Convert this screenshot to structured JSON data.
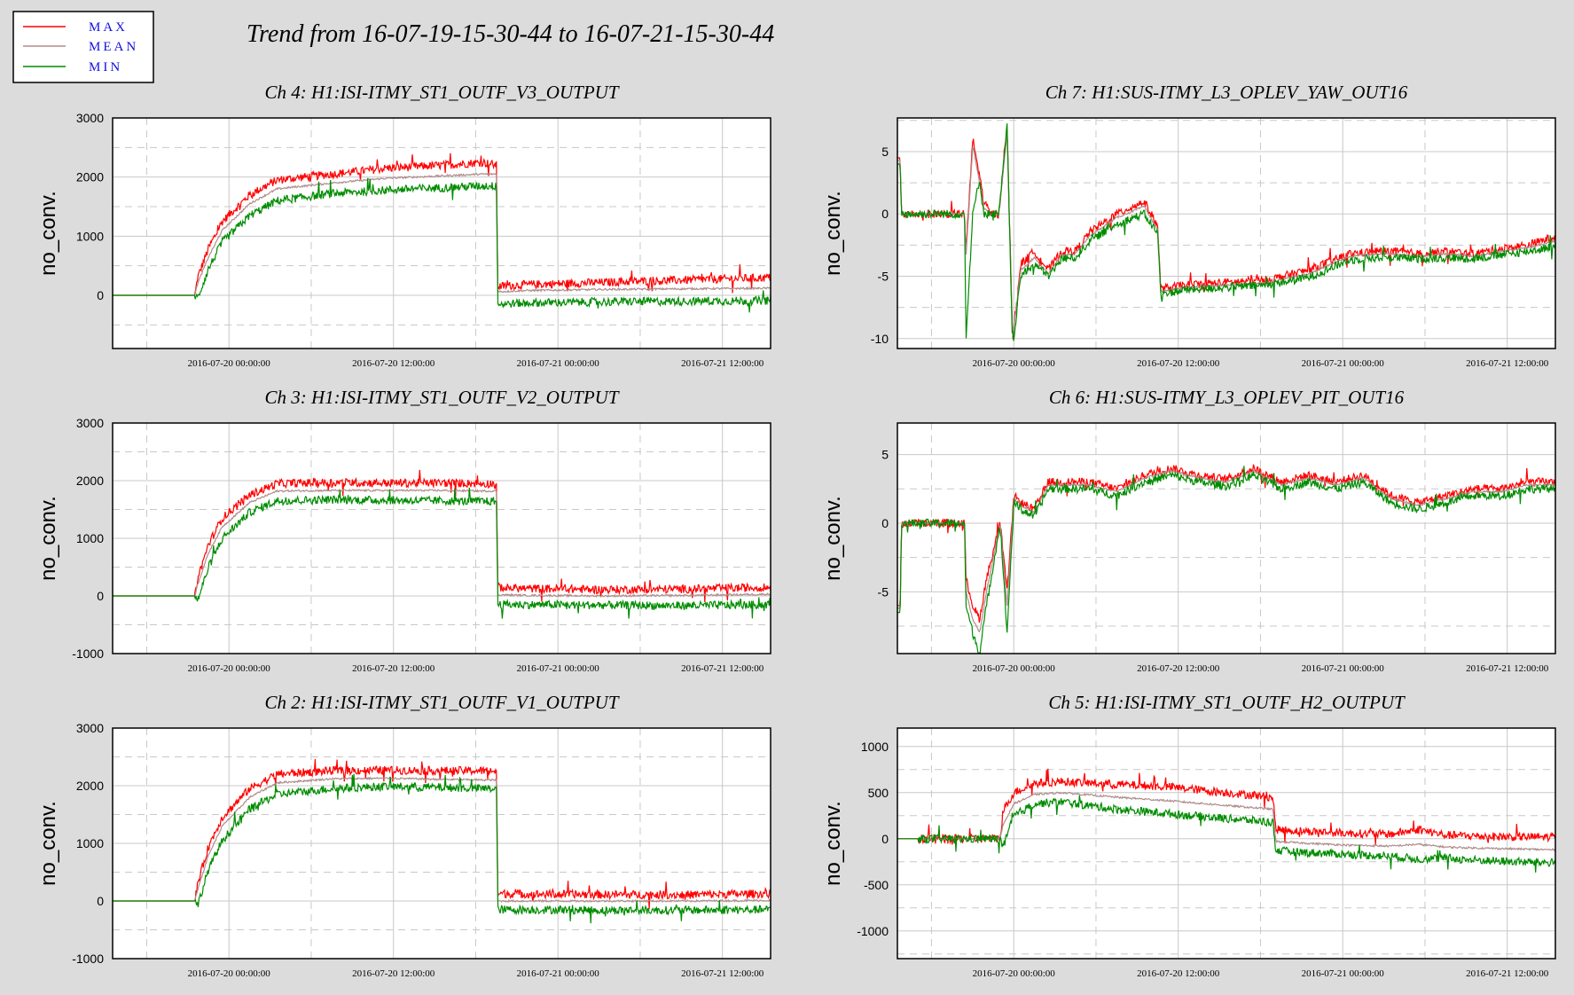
{
  "title": "Trend from 16-07-19-15-30-44 to 16-07-21-15-30-44",
  "legend": [
    {
      "label": "MAX",
      "color": "#ff0000"
    },
    {
      "label": "MEAN",
      "color": "#b08c8c"
    },
    {
      "label": "MIN",
      "color": "#008c00"
    }
  ],
  "colors": {
    "max": "#ff0000",
    "mean": "#b08c8c",
    "min": "#008c00",
    "grid": "#c8c8c8",
    "plot_bg": "#ffffff"
  },
  "chart_data": [
    {
      "type": "line",
      "title": "Ch 4: H1:ISI-ITMY_ST1_OUTF_V3_OUTPUT",
      "ylabel": "no_conv.",
      "xlim": [
        "2016-07-19 15:30:44",
        "2016-07-21 15:30:44"
      ],
      "ylim": [
        -900,
        3000
      ],
      "yticks": [
        3000,
        2000,
        1000,
        0
      ],
      "xtick_labels": [
        "2016-07-20 00:00:00",
        "2016-07-20 12:00:00",
        "2016-07-21 00:00:00",
        "2016-07-21 12:00:00"
      ],
      "series": [
        {
          "name": "MAX",
          "x_hours": [
            0,
            6,
            6.2,
            7,
            8,
            10,
            12,
            16,
            20,
            24,
            27,
            28,
            28.1,
            30,
            36,
            42,
            48
          ],
          "values": [
            0,
            0,
            300,
            800,
            1250,
            1700,
            1950,
            2050,
            2150,
            2200,
            2250,
            2200,
            150,
            180,
            220,
            260,
            300
          ]
        },
        {
          "name": "MEAN",
          "x_hours": [
            0,
            6,
            6.2,
            7,
            8,
            10,
            12,
            16,
            20,
            24,
            27,
            28,
            28.1,
            30,
            36,
            42,
            48
          ],
          "values": [
            0,
            0,
            200,
            650,
            1100,
            1550,
            1800,
            1900,
            1980,
            2020,
            2050,
            2050,
            60,
            80,
            100,
            110,
            120
          ]
        },
        {
          "name": "MIN",
          "x_hours": [
            0,
            6,
            6.2,
            7,
            8,
            10,
            12,
            16,
            20,
            24,
            27,
            28,
            28.1,
            30,
            36,
            42,
            48
          ],
          "values": [
            0,
            0,
            -50,
            450,
            900,
            1350,
            1600,
            1720,
            1780,
            1820,
            1850,
            1850,
            -150,
            -130,
            -110,
            -100,
            -90
          ]
        }
      ]
    },
    {
      "type": "line",
      "title": "Ch 3: H1:ISI-ITMY_ST1_OUTF_V2_OUTPUT",
      "ylabel": "no_conv.",
      "xlim": [
        "2016-07-19 15:30:44",
        "2016-07-21 15:30:44"
      ],
      "ylim": [
        -1000,
        3000
      ],
      "yticks": [
        3000,
        2000,
        1000,
        0,
        -1000
      ],
      "xtick_labels": [
        "2016-07-20 00:00:00",
        "2016-07-20 12:00:00",
        "2016-07-21 00:00:00",
        "2016-07-21 12:00:00"
      ],
      "series": [
        {
          "name": "MAX",
          "x_hours": [
            0,
            6,
            6.2,
            7,
            8,
            10,
            12,
            16,
            20,
            24,
            27,
            28,
            28.1,
            30,
            36,
            42,
            48
          ],
          "values": [
            0,
            0,
            300,
            900,
            1350,
            1750,
            1950,
            1970,
            1960,
            1960,
            1950,
            1950,
            150,
            130,
            110,
            120,
            150
          ]
        },
        {
          "name": "MEAN",
          "x_hours": [
            0,
            6,
            6.2,
            7,
            8,
            10,
            12,
            16,
            20,
            24,
            27,
            28,
            28.1,
            30,
            36,
            42,
            48
          ],
          "values": [
            0,
            0,
            200,
            750,
            1200,
            1620,
            1820,
            1830,
            1830,
            1830,
            1820,
            1820,
            20,
            10,
            0,
            10,
            30
          ]
        },
        {
          "name": "MIN",
          "x_hours": [
            0,
            6,
            6.2,
            7,
            8,
            10,
            12,
            16,
            20,
            24,
            27,
            28,
            28.1,
            30,
            36,
            42,
            48
          ],
          "values": [
            0,
            0,
            -80,
            500,
            1000,
            1450,
            1650,
            1670,
            1660,
            1650,
            1640,
            1640,
            -150,
            -150,
            -160,
            -170,
            -150
          ]
        }
      ]
    },
    {
      "type": "line",
      "title": "Ch 2: H1:ISI-ITMY_ST1_OUTF_V1_OUTPUT",
      "ylabel": "no_conv.",
      "xlim": [
        "2016-07-19 15:30:44",
        "2016-07-21 15:30:44"
      ],
      "ylim": [
        -1000,
        3000
      ],
      "yticks": [
        3000,
        2000,
        1000,
        0,
        -1000
      ],
      "xtick_labels": [
        "2016-07-20 00:00:00",
        "2016-07-20 12:00:00",
        "2016-07-21 00:00:00",
        "2016-07-21 12:00:00"
      ],
      "series": [
        {
          "name": "MAX",
          "x_hours": [
            0,
            6,
            6.2,
            7,
            8,
            10,
            12,
            16,
            20,
            24,
            27,
            28,
            28.1,
            30,
            36,
            42,
            48
          ],
          "values": [
            0,
            0,
            300,
            950,
            1450,
            1950,
            2200,
            2260,
            2270,
            2260,
            2260,
            2260,
            130,
            120,
            110,
            110,
            130
          ]
        },
        {
          "name": "MEAN",
          "x_hours": [
            0,
            6,
            6.2,
            7,
            8,
            10,
            12,
            16,
            20,
            24,
            27,
            28,
            28.1,
            30,
            36,
            42,
            48
          ],
          "values": [
            0,
            0,
            200,
            800,
            1300,
            1800,
            2050,
            2120,
            2130,
            2110,
            2100,
            2100,
            0,
            0,
            0,
            0,
            10
          ]
        },
        {
          "name": "MIN",
          "x_hours": [
            0,
            6,
            6.2,
            7,
            8,
            10,
            12,
            16,
            20,
            24,
            27,
            28,
            28.1,
            30,
            36,
            42,
            48
          ],
          "values": [
            0,
            0,
            -80,
            550,
            1050,
            1600,
            1850,
            1950,
            1990,
            1970,
            1950,
            1950,
            -150,
            -150,
            -160,
            -160,
            -150
          ]
        }
      ]
    },
    {
      "type": "line",
      "title": "Ch 7: H1:SUS-ITMY_L3_OPLEV_YAW_OUT16",
      "ylabel": "no_conv.",
      "xlim": [
        "2016-07-19 15:30:44",
        "2016-07-21 15:30:44"
      ],
      "ylim": [
        -10.8,
        7.7
      ],
      "yticks": [
        5,
        0,
        -5,
        -10
      ],
      "xtick_labels": [
        "2016-07-20 00:00:00",
        "2016-07-20 12:00:00",
        "2016-07-21 00:00:00",
        "2016-07-21 12:00:00"
      ],
      "series": [
        {
          "name": "MAX",
          "x_hours": [
            0,
            0.2,
            0.3,
            1.5,
            4.5,
            4.9,
            5.0,
            5.5,
            6.0,
            6.3,
            6.8,
            7.4,
            8.0,
            8.4,
            9.0,
            10,
            11,
            12,
            13,
            14,
            16,
            18,
            19,
            19.2,
            19.4,
            21,
            24,
            27,
            30,
            33,
            35,
            36,
            38,
            40,
            42,
            44,
            46,
            48
          ],
          "values": [
            4.5,
            4.5,
            0,
            0,
            0,
            0,
            -3,
            6,
            3,
            1,
            0,
            0,
            7,
            -10,
            -4,
            -3,
            -4.5,
            -3,
            -3,
            -1.5,
            0,
            1,
            -1,
            -6,
            -6,
            -5.7,
            -5.5,
            -5.3,
            -4.5,
            -3.2,
            -3,
            -3,
            -3.2,
            -3,
            -3.2,
            -2.8,
            -2.5,
            -1.8
          ]
        },
        {
          "name": "MEAN",
          "x_hours": [
            0,
            0.2,
            0.3,
            1.5,
            4.5,
            4.9,
            5.0,
            5.5,
            6.0,
            6.3,
            6.8,
            7.4,
            8.0,
            8.4,
            9.0,
            10,
            11,
            12,
            13,
            14,
            16,
            18,
            19,
            19.2,
            19.4,
            21,
            24,
            27,
            30,
            33,
            35,
            36,
            38,
            40,
            42,
            44,
            46,
            48
          ],
          "values": [
            4.3,
            4.3,
            0,
            0,
            0,
            0,
            -3.5,
            5.5,
            2.5,
            0.5,
            0,
            0,
            6.5,
            -10,
            -4.5,
            -3.5,
            -4.8,
            -3.3,
            -3.2,
            -1.8,
            -0.3,
            0.6,
            -1.3,
            -6.2,
            -6.2,
            -5.9,
            -5.7,
            -5.5,
            -4.8,
            -3.4,
            -3.2,
            -3.2,
            -3.4,
            -3.2,
            -3.4,
            -3,
            -2.7,
            -2.2
          ]
        },
        {
          "name": "MIN",
          "x_hours": [
            0,
            0.2,
            0.3,
            1.5,
            4.5,
            4.9,
            5.0,
            5.5,
            6.0,
            6.3,
            6.8,
            7.4,
            8.0,
            8.4,
            9.0,
            10,
            11,
            12,
            13,
            14,
            16,
            18,
            19,
            19.2,
            19.4,
            21,
            24,
            27,
            30,
            33,
            35,
            36,
            38,
            40,
            42,
            44,
            46,
            48
          ],
          "values": [
            4.0,
            4.0,
            0,
            0,
            0,
            0,
            -10,
            0,
            2.8,
            0,
            0,
            0,
            7,
            -10.8,
            -5,
            -4,
            -5,
            -3.6,
            -3.5,
            -2.2,
            -0.8,
            0,
            -1.6,
            -6.4,
            -6.4,
            -6.1,
            -5.9,
            -5.7,
            -5.1,
            -3.7,
            -3.5,
            -3.5,
            -3.6,
            -3.5,
            -3.6,
            -3.3,
            -3,
            -2.6
          ]
        }
      ]
    },
    {
      "type": "line",
      "title": "Ch 6: H1:SUS-ITMY_L3_OPLEV_PIT_OUT16",
      "ylabel": "no_conv.",
      "xlim": [
        "2016-07-19 15:30:44",
        "2016-07-21 15:30:44"
      ],
      "ylim": [
        -9.5,
        7.3
      ],
      "yticks": [
        5,
        0,
        -5
      ],
      "xtick_labels": [
        "2016-07-20 00:00:00",
        "2016-07-20 12:00:00",
        "2016-07-21 00:00:00",
        "2016-07-21 12:00:00"
      ],
      "series": [
        {
          "name": "MAX",
          "x_hours": [
            0,
            0.2,
            0.3,
            1.5,
            4.5,
            4.9,
            5.0,
            5.5,
            6.0,
            6.5,
            7.5,
            8.0,
            8.5,
            9,
            10,
            11,
            12,
            14,
            16,
            18,
            20,
            22,
            24,
            26,
            27,
            28,
            30,
            32,
            34,
            36,
            38,
            40,
            42,
            44,
            46,
            48
          ],
          "values": [
            -6,
            -6,
            0,
            0,
            0,
            0,
            -4,
            -6,
            -7,
            -4,
            0,
            -5,
            2,
            1.5,
            1,
            3,
            3,
            3,
            2.5,
            3.5,
            4,
            3.5,
            3.2,
            4,
            3.5,
            3,
            3.5,
            3,
            3.5,
            2,
            1.5,
            2,
            2.5,
            2.5,
            3,
            3
          ]
        },
        {
          "name": "MEAN",
          "x_hours": [
            0,
            0.2,
            0.3,
            1.5,
            4.5,
            4.9,
            5.0,
            5.5,
            6.0,
            6.5,
            7.5,
            8.0,
            8.5,
            9,
            10,
            11,
            12,
            14,
            16,
            18,
            20,
            22,
            24,
            26,
            27,
            28,
            30,
            32,
            34,
            36,
            38,
            40,
            42,
            44,
            46,
            48
          ],
          "values": [
            -6.2,
            -6.2,
            0,
            0,
            0,
            0,
            -5,
            -7,
            -8,
            -5,
            0,
            -6,
            1.8,
            1.3,
            0.8,
            2.8,
            2.8,
            2.8,
            2.3,
            3.3,
            3.8,
            3.3,
            3,
            3.8,
            3.3,
            2.8,
            3.3,
            2.8,
            3.3,
            1.8,
            1.3,
            1.8,
            2.3,
            2.3,
            2.8,
            2.8
          ]
        },
        {
          "name": "MIN",
          "x_hours": [
            0,
            0.2,
            0.3,
            1.5,
            4.5,
            4.9,
            5.0,
            5.5,
            6.0,
            6.5,
            7.5,
            8.0,
            8.5,
            9,
            10,
            11,
            12,
            14,
            16,
            18,
            20,
            22,
            24,
            26,
            27,
            28,
            30,
            32,
            34,
            36,
            38,
            40,
            42,
            44,
            46,
            48
          ],
          "values": [
            -6.5,
            -6.5,
            0,
            0,
            0,
            0,
            -6,
            -8,
            -9.5,
            -6,
            0,
            -8,
            1.5,
            1,
            0.5,
            2.5,
            2.5,
            2.5,
            2,
            3,
            3.5,
            3,
            2.7,
            3.5,
            3,
            2.5,
            3,
            2.5,
            3,
            1.5,
            1,
            1.5,
            2,
            2,
            2.5,
            2.5
          ]
        }
      ]
    },
    {
      "type": "line",
      "title": "Ch 5: H1:ISI-ITMY_ST1_OUTF_H2_OUTPUT",
      "ylabel": "no_conv.",
      "xlim": [
        "2016-07-19 15:30:44",
        "2016-07-21 15:30:44"
      ],
      "ylim": [
        -1300,
        1200
      ],
      "yticks": [
        1000,
        500,
        0,
        -500,
        -1000
      ],
      "xtick_labels": [
        "2016-07-20 00:00:00",
        "2016-07-20 12:00:00",
        "2016-07-21 00:00:00",
        "2016-07-21 12:00:00"
      ],
      "series": [
        {
          "name": "MAX",
          "x_hours": [
            0,
            1.5,
            7.5,
            7.7,
            8.5,
            10,
            12,
            16,
            20,
            24,
            27.4,
            27.6,
            30,
            33,
            36,
            38,
            40,
            42,
            45,
            48
          ],
          "values": [
            0,
            0,
            0,
            300,
            500,
            600,
            620,
            590,
            560,
            500,
            450,
            100,
            80,
            60,
            50,
            100,
            40,
            30,
            20,
            20
          ]
        },
        {
          "name": "MEAN",
          "x_hours": [
            0,
            1.5,
            7.5,
            7.7,
            8.5,
            10,
            12,
            16,
            20,
            24,
            27.4,
            27.6,
            30,
            33,
            36,
            38,
            40,
            42,
            45,
            48
          ],
          "values": [
            0,
            0,
            0,
            150,
            380,
            480,
            500,
            450,
            410,
            360,
            320,
            -30,
            -50,
            -70,
            -80,
            -60,
            -90,
            -100,
            -110,
            -120
          ]
        },
        {
          "name": "MIN",
          "x_hours": [
            0,
            1.5,
            7.5,
            7.7,
            8.5,
            10,
            12,
            16,
            20,
            24,
            27.4,
            27.6,
            30,
            33,
            36,
            38,
            40,
            42,
            45,
            48
          ],
          "values": [
            0,
            0,
            0,
            -100,
            250,
            380,
            400,
            320,
            270,
            220,
            180,
            -130,
            -150,
            -170,
            -190,
            -220,
            -210,
            -230,
            -250,
            -260
          ]
        }
      ]
    }
  ]
}
